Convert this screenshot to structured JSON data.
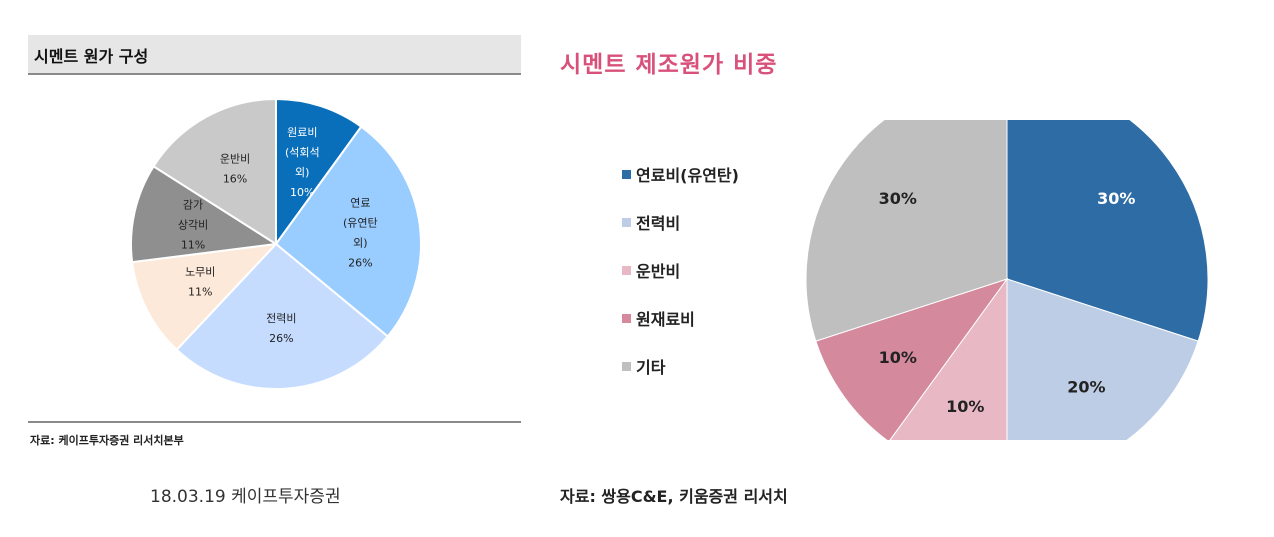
{
  "left": {
    "title": "시멘트 원가 구성",
    "source": "자료: 케이프투자증권 리서치본부",
    "date_caption": "18.03.19 케이프투자증권"
  },
  "right": {
    "title": "시멘트 제조원가 비중",
    "source": "자료: 쌍용C&E, 키움증권 리서치"
  },
  "chart_data": [
    {
      "type": "pie",
      "title": "시멘트 원가 구성",
      "slices": [
        {
          "label_lines": [
            "원료비",
            "(석회석",
            "외)"
          ],
          "value": 10,
          "value_label": "10%",
          "color": "#0a6fba",
          "text_color": "#ffffff"
        },
        {
          "label_lines": [
            "연료",
            "(유연탄",
            "외)"
          ],
          "value": 26,
          "value_label": "26%",
          "color": "#99ccff",
          "text_color": "#222222"
        },
        {
          "label_lines": [
            "전력비"
          ],
          "value": 26,
          "value_label": "26%",
          "color": "#c5dcff",
          "text_color": "#222222"
        },
        {
          "label_lines": [
            "노무비"
          ],
          "value": 11,
          "value_label": "11%",
          "color": "#fde9d9",
          "text_color": "#222222"
        },
        {
          "label_lines": [
            "감가",
            "상각비"
          ],
          "value": 11,
          "value_label": "11%",
          "color": "#8f8f8f",
          "text_color": "#222222"
        },
        {
          "label_lines": [
            "운반비"
          ],
          "value": 16,
          "value_label": "16%",
          "color": "#c9c9c9",
          "text_color": "#222222"
        }
      ]
    },
    {
      "type": "pie",
      "title": "시멘트 제조원가 비중",
      "legend_position": "left",
      "slices": [
        {
          "name": "연료비(유연탄)",
          "value": 30,
          "value_label": "30%",
          "color": "#2e6ca6",
          "text_color": "#ffffff"
        },
        {
          "name": "전력비",
          "value": 20,
          "value_label": "20%",
          "color": "#bdcde5",
          "text_color": "#222222"
        },
        {
          "name": "운반비",
          "value": 10,
          "value_label": "10%",
          "color": "#e8b9c5",
          "text_color": "#222222"
        },
        {
          "name": "원재료비",
          "value": 10,
          "value_label": "10%",
          "color": "#d48a9c",
          "text_color": "#222222"
        },
        {
          "name": "기타",
          "value": 30,
          "value_label": "30%",
          "color": "#bfbfbf",
          "text_color": "#222222"
        }
      ]
    }
  ]
}
